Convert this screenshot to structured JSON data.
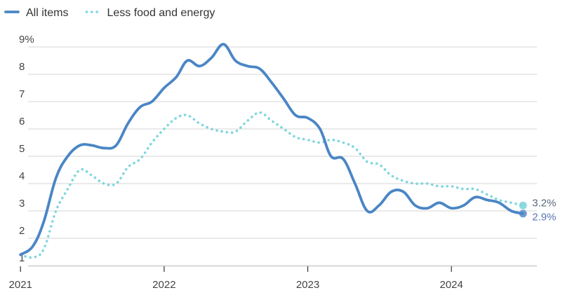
{
  "chart_data": {
    "type": "line",
    "title": "",
    "xlabel": "",
    "ylabel": "",
    "x_ticks": [
      "2021",
      "2022",
      "2023",
      "2024"
    ],
    "y_ticks": [
      "1",
      "2",
      "3",
      "4",
      "5",
      "6",
      "7",
      "8",
      "9%"
    ],
    "ylim": [
      0.6,
      9.4
    ],
    "xlim": [
      "2020-11",
      "2024-09"
    ],
    "grid": "horizontal",
    "legend_position": "top-left",
    "x": [
      "2021-01",
      "2021-02",
      "2021-03",
      "2021-04",
      "2021-05",
      "2021-06",
      "2021-07",
      "2021-08",
      "2021-09",
      "2021-10",
      "2021-11",
      "2021-12",
      "2022-01",
      "2022-02",
      "2022-03",
      "2022-04",
      "2022-05",
      "2022-06",
      "2022-07",
      "2022-08",
      "2022-09",
      "2022-10",
      "2022-11",
      "2022-12",
      "2023-01",
      "2023-02",
      "2023-03",
      "2023-04",
      "2023-05",
      "2023-06",
      "2023-07",
      "2023-08",
      "2023-09",
      "2023-10",
      "2023-11",
      "2023-12",
      "2024-01",
      "2024-02",
      "2024-03",
      "2024-04",
      "2024-05",
      "2024-06",
      "2024-07"
    ],
    "series": [
      {
        "name": "All items",
        "color": "#4a86c5",
        "style": "solid",
        "values": [
          1.4,
          1.7,
          2.6,
          4.2,
          5.0,
          5.4,
          5.4,
          5.3,
          5.4,
          6.2,
          6.8,
          7.0,
          7.5,
          7.9,
          8.5,
          8.3,
          8.6,
          9.1,
          8.5,
          8.3,
          8.2,
          7.7,
          7.1,
          6.5,
          6.4,
          6.0,
          5.0,
          4.9,
          4.0,
          3.0,
          3.2,
          3.7,
          3.7,
          3.2,
          3.1,
          3.3,
          3.1,
          3.2,
          3.5,
          3.4,
          3.3,
          3.0,
          2.9
        ],
        "end_label": "2.9%"
      },
      {
        "name": "Less food and energy",
        "color": "#7fd6dc",
        "style": "dotted",
        "values": [
          1.4,
          1.3,
          1.6,
          3.0,
          3.8,
          4.5,
          4.3,
          4.0,
          4.0,
          4.6,
          4.9,
          5.5,
          6.0,
          6.4,
          6.5,
          6.2,
          6.0,
          5.9,
          5.9,
          6.3,
          6.6,
          6.3,
          6.0,
          5.7,
          5.6,
          5.5,
          5.6,
          5.5,
          5.3,
          4.8,
          4.7,
          4.3,
          4.1,
          4.0,
          4.0,
          3.9,
          3.9,
          3.8,
          3.8,
          3.6,
          3.4,
          3.3,
          3.2
        ],
        "end_label": "3.2%"
      }
    ]
  }
}
